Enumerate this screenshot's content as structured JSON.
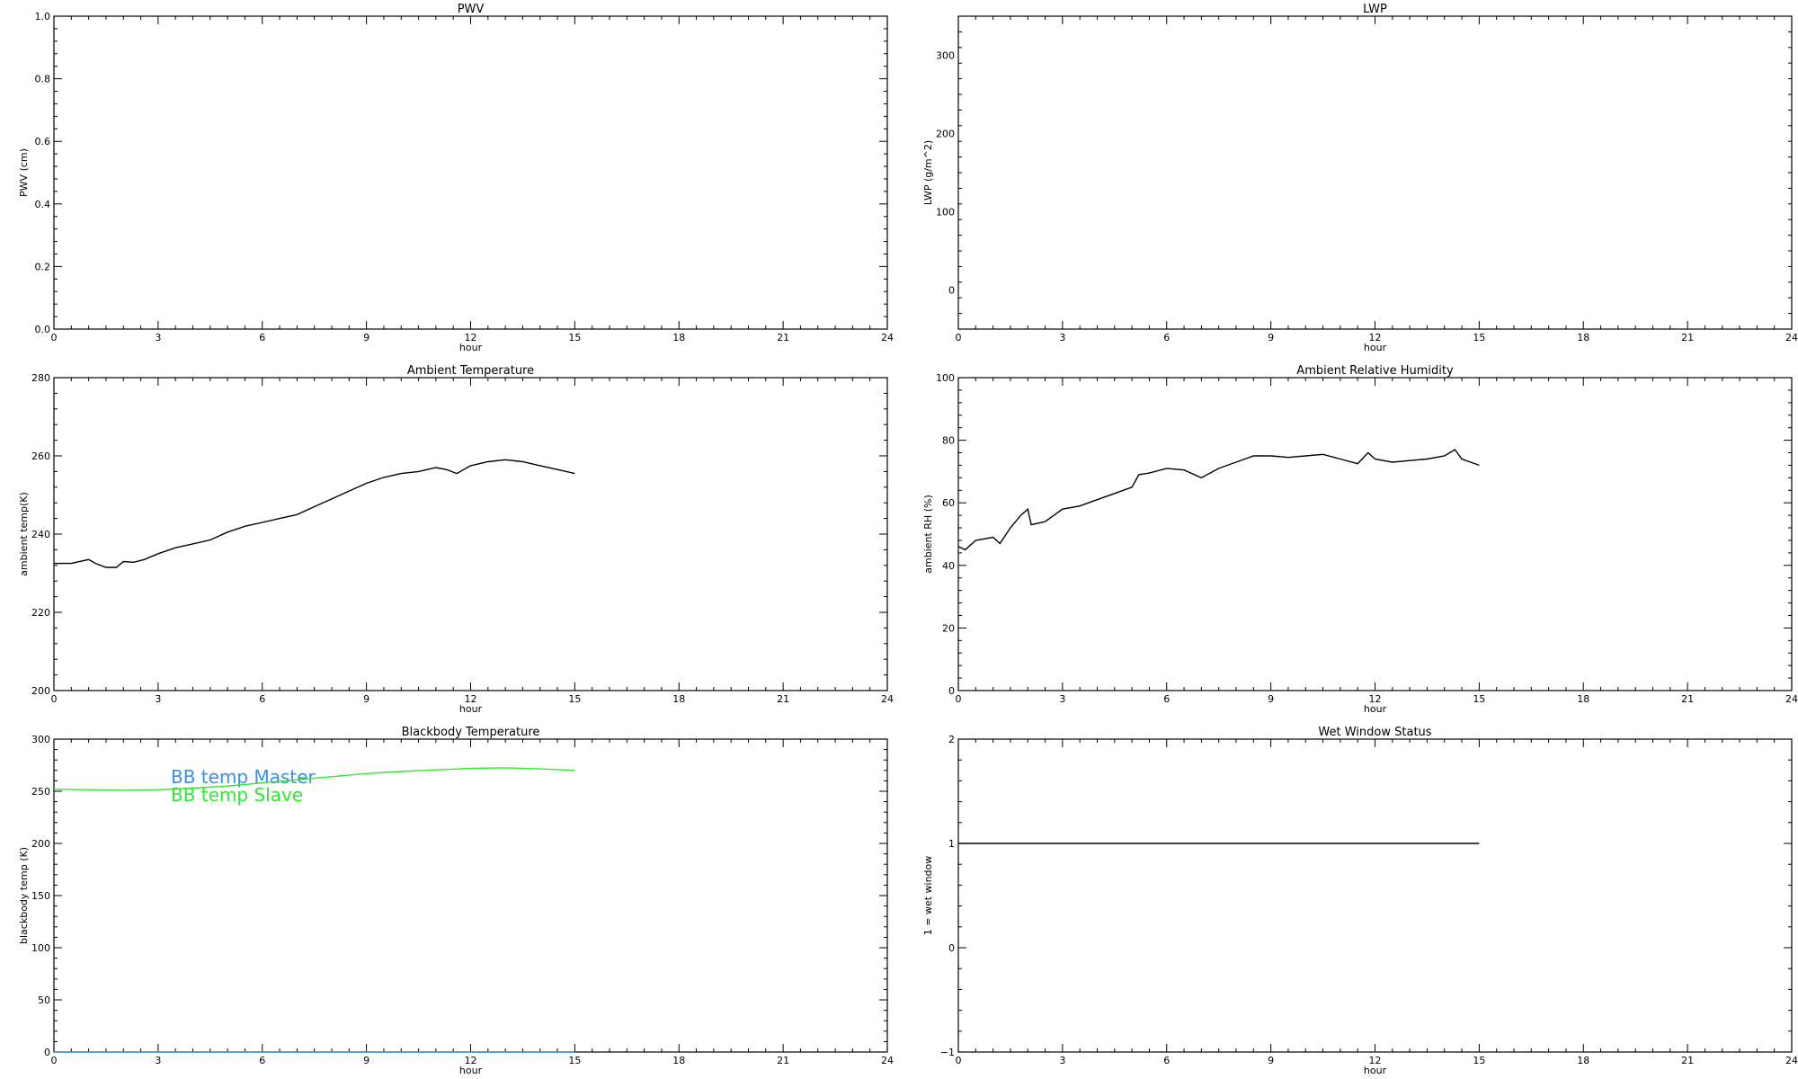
{
  "chart_data": [
    {
      "type": "line",
      "title": "PWV",
      "xlabel": "hour",
      "ylabel": "PWV (cm)",
      "xlim": [
        0,
        24
      ],
      "ylim": [
        0,
        1.0
      ],
      "xticks": [
        "0",
        "3",
        "6",
        "9",
        "12",
        "15",
        "18",
        "21",
        "24"
      ],
      "yticks": [
        "0.0",
        "0.2",
        "0.4",
        "0.6",
        "0.8",
        "1.0"
      ],
      "ytick_values": [
        0,
        0.2,
        0.4,
        0.6,
        0.8,
        1.0
      ],
      "series": []
    },
    {
      "type": "line",
      "title": "LWP",
      "xlabel": "hour",
      "ylabel": "LWP (g/m^2)",
      "xlim": [
        0,
        24
      ],
      "ylim": [
        -50,
        350
      ],
      "xticks": [
        "0",
        "3",
        "6",
        "9",
        "12",
        "15",
        "18",
        "21",
        "24"
      ],
      "yticks": [
        "0",
        "100",
        "200",
        "300"
      ],
      "ytick_values": [
        0,
        100,
        200,
        300
      ],
      "series": []
    },
    {
      "type": "line",
      "title": "Ambient Temperature",
      "xlabel": "hour",
      "ylabel": "ambient temp(K)",
      "xlim": [
        0,
        24
      ],
      "ylim": [
        200,
        280
      ],
      "xticks": [
        "0",
        "3",
        "6",
        "9",
        "12",
        "15",
        "18",
        "21",
        "24"
      ],
      "yticks": [
        "200",
        "220",
        "240",
        "260",
        "280"
      ],
      "ytick_values": [
        200,
        220,
        240,
        260,
        280
      ],
      "series": [
        {
          "color": "#000000",
          "x": [
            0,
            0.5,
            1.0,
            1.2,
            1.5,
            1.8,
            2.0,
            2.3,
            2.6,
            3.0,
            3.5,
            4.0,
            4.5,
            5.0,
            5.5,
            6.0,
            6.5,
            7.0,
            7.5,
            8.0,
            8.5,
            9.0,
            9.5,
            10.0,
            10.5,
            11.0,
            11.3,
            11.6,
            12.0,
            12.5,
            13.0,
            13.5,
            14.0,
            14.5,
            15.0
          ],
          "y": [
            232.5,
            232.5,
            233.5,
            232.5,
            231.5,
            231.5,
            233.0,
            232.8,
            233.5,
            235.0,
            236.5,
            237.5,
            238.5,
            240.5,
            242.0,
            243.0,
            244.0,
            245.0,
            247.0,
            249.0,
            251.0,
            253.0,
            254.5,
            255.5,
            256.0,
            257.0,
            256.5,
            255.5,
            257.5,
            258.5,
            259.0,
            258.5,
            257.5,
            256.5,
            255.5
          ]
        }
      ]
    },
    {
      "type": "line",
      "title": "Ambient Relative Humidity",
      "xlabel": "hour",
      "ylabel": "ambient RH (%)",
      "xlim": [
        0,
        24
      ],
      "ylim": [
        0,
        100
      ],
      "xticks": [
        "0",
        "3",
        "6",
        "9",
        "12",
        "15",
        "18",
        "21",
        "24"
      ],
      "yticks": [
        "0",
        "20",
        "40",
        "60",
        "80",
        "100"
      ],
      "ytick_values": [
        0,
        20,
        40,
        60,
        80,
        100
      ],
      "series": [
        {
          "color": "#000000",
          "x": [
            0,
            0.2,
            0.5,
            1.0,
            1.2,
            1.5,
            1.8,
            2.0,
            2.1,
            2.5,
            3.0,
            3.5,
            4.0,
            4.5,
            5.0,
            5.2,
            5.5,
            6.0,
            6.5,
            7.0,
            7.5,
            8.0,
            8.5,
            9.0,
            9.5,
            10.0,
            10.5,
            11.0,
            11.5,
            11.8,
            12.0,
            12.5,
            13.0,
            13.5,
            14.0,
            14.3,
            14.5,
            15.0
          ],
          "y": [
            46,
            45,
            48,
            49,
            47,
            52,
            56,
            58,
            53,
            54,
            58,
            59,
            61,
            63,
            65,
            69,
            69.5,
            71,
            70.5,
            68,
            71,
            73,
            75,
            75,
            74.5,
            75,
            75.5,
            74,
            72.5,
            76,
            74,
            73,
            73.5,
            74,
            75,
            77,
            74,
            72
          ]
        }
      ]
    },
    {
      "type": "line",
      "title": "Blackbody Temperature",
      "xlabel": "hour",
      "ylabel": "blackbody temp (K)",
      "xlim": [
        0,
        24
      ],
      "ylim": [
        0,
        300
      ],
      "xticks": [
        "0",
        "3",
        "6",
        "9",
        "12",
        "15",
        "18",
        "21",
        "24"
      ],
      "yticks": [
        "0",
        "50",
        "100",
        "150",
        "200",
        "250",
        "300"
      ],
      "ytick_values": [
        0,
        50,
        100,
        150,
        200,
        250,
        300
      ],
      "series": [
        {
          "name": "BB temp Master",
          "color": "#3a8ee6",
          "x": [
            0,
            3,
            6,
            9,
            12,
            15
          ],
          "y": [
            0,
            0,
            0,
            0,
            0,
            0
          ]
        },
        {
          "name": "BB temp Slave",
          "color": "#33e633",
          "x": [
            0,
            1,
            2,
            3,
            4,
            5,
            6,
            7,
            8,
            9,
            10,
            11,
            12,
            13,
            14,
            15
          ],
          "y": [
            252,
            251.5,
            251,
            251.5,
            253,
            255,
            258,
            261,
            264,
            267,
            269,
            270.5,
            272,
            272.5,
            271.5,
            270
          ]
        }
      ]
    },
    {
      "type": "line",
      "title": "Wet Window Status",
      "xlabel": "hour",
      "ylabel": "1 = wet window",
      "xlim": [
        0,
        24
      ],
      "ylim": [
        -1,
        2
      ],
      "xticks": [
        "0",
        "3",
        "6",
        "9",
        "12",
        "15",
        "18",
        "21",
        "24"
      ],
      "yticks": [
        "−1",
        "0",
        "1",
        "2"
      ],
      "ytick_values": [
        -1,
        0,
        1,
        2
      ],
      "series": [
        {
          "color": "#000000",
          "x": [
            0,
            15
          ],
          "y": [
            1,
            1
          ]
        }
      ]
    }
  ]
}
